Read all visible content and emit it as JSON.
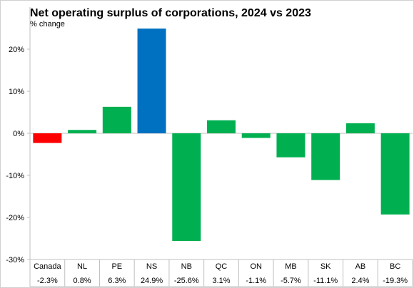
{
  "chart_data": {
    "type": "bar",
    "title": "Net operating surplus of corporations, 2024 vs 2023",
    "subtitle": "% change",
    "categories": [
      "Canada",
      "NL",
      "PE",
      "NS",
      "NB",
      "QC",
      "ON",
      "MB",
      "SK",
      "AB",
      "BC"
    ],
    "values": [
      -2.3,
      0.8,
      6.3,
      24.9,
      -25.6,
      3.1,
      -1.1,
      -5.7,
      -11.1,
      2.4,
      -19.3
    ],
    "value_labels": [
      "-2.3%",
      "0.8%",
      "6.3%",
      "24.9%",
      "-25.6%",
      "3.1%",
      "-1.1%",
      "-5.7%",
      "-11.1%",
      "2.4%",
      "-19.3%"
    ],
    "ylim": [
      -30,
      30
    ],
    "yticks": [
      -30,
      -20,
      -10,
      0,
      10,
      20
    ],
    "ytick_labels": [
      "-30%",
      "-20%",
      "-10%",
      "0%",
      "10%",
      "20%"
    ],
    "colors": [
      "#ff0000",
      "#00b050",
      "#00b050",
      "#0070c0",
      "#00b050",
      "#00b050",
      "#00b050",
      "#00b050",
      "#00b050",
      "#00b050",
      "#00b050"
    ],
    "grid": false,
    "legend": "none",
    "data_table_below": true
  }
}
